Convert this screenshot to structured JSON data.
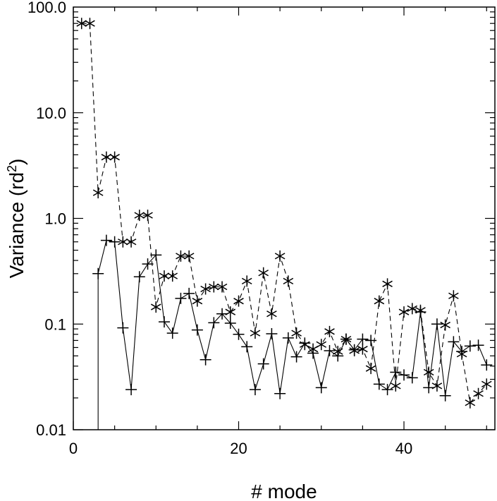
{
  "chart_data": {
    "type": "line",
    "title": "",
    "xlabel": "# mode",
    "ylabel": "Variance (rd",
    "ylabel_sup": "2",
    "ylabel_close": ")",
    "xlim": [
      0,
      51
    ],
    "ylim": [
      0.01,
      100
    ],
    "y_scale": "log",
    "grid": false,
    "x_ticks": [
      {
        "value": 0,
        "label": "0"
      },
      {
        "value": 20,
        "label": "20"
      },
      {
        "value": 40,
        "label": "40"
      }
    ],
    "y_ticks": [
      {
        "value": 0.01,
        "label": "0.01"
      },
      {
        "value": 0.1,
        "label": "0.1"
      },
      {
        "value": 1,
        "label": "1.0"
      },
      {
        "value": 10,
        "label": "10.0"
      },
      {
        "value": 100,
        "label": "100.0"
      }
    ],
    "series": [
      {
        "marker": "asterisk",
        "line": "dashed",
        "color": "#000000",
        "x": [
          1,
          2,
          3,
          4,
          5,
          6,
          7,
          8,
          9,
          10,
          11,
          12,
          13,
          14,
          15,
          16,
          17,
          18,
          19,
          20,
          21,
          22,
          23,
          24,
          25,
          26,
          27,
          28,
          29,
          30,
          31,
          32,
          33,
          34,
          35,
          36,
          37,
          38,
          39,
          40,
          41,
          42,
          43,
          44,
          45,
          46,
          47,
          48,
          49,
          50
        ],
        "y": [
          70,
          70,
          1.75,
          3.8,
          3.8,
          0.6,
          0.6,
          1.07,
          1.07,
          0.145,
          0.285,
          0.285,
          0.44,
          0.44,
          0.165,
          0.215,
          0.225,
          0.225,
          0.13,
          0.165,
          0.255,
          0.082,
          0.305,
          0.125,
          0.44,
          0.255,
          0.082,
          0.064,
          0.058,
          0.064,
          0.085,
          0.055,
          0.072,
          0.056,
          0.058,
          0.038,
          0.165,
          0.24,
          0.026,
          0.13,
          0.14,
          0.135,
          0.035,
          0.026,
          0.098,
          0.185,
          0.052,
          0.018,
          0.022,
          0.027
        ]
      },
      {
        "marker": "plus",
        "line": "solid",
        "color": "#000000",
        "x": [
          3,
          4,
          5,
          6,
          7,
          8,
          9,
          10,
          11,
          12,
          13,
          14,
          15,
          16,
          17,
          18,
          19,
          20,
          21,
          22,
          23,
          24,
          25,
          26,
          27,
          28,
          29,
          30,
          31,
          32,
          33,
          34,
          35,
          36,
          37,
          38,
          39,
          40,
          41,
          42,
          43,
          44,
          45,
          46,
          47,
          48,
          49,
          50
        ],
        "y": [
          0.3,
          0.62,
          0.6,
          0.092,
          0.024,
          0.28,
          0.37,
          0.45,
          0.105,
          0.082,
          0.175,
          0.195,
          0.088,
          0.046,
          0.103,
          0.125,
          0.102,
          0.08,
          0.061,
          0.024,
          0.042,
          0.081,
          0.022,
          0.074,
          0.049,
          0.066,
          0.053,
          0.025,
          0.056,
          0.05,
          0.072,
          0.057,
          0.072,
          0.07,
          0.027,
          0.024,
          0.035,
          0.033,
          0.031,
          0.13,
          0.025,
          0.1,
          0.021,
          0.068,
          0.055,
          0.062,
          0.063,
          0.041
        ]
      }
    ]
  }
}
